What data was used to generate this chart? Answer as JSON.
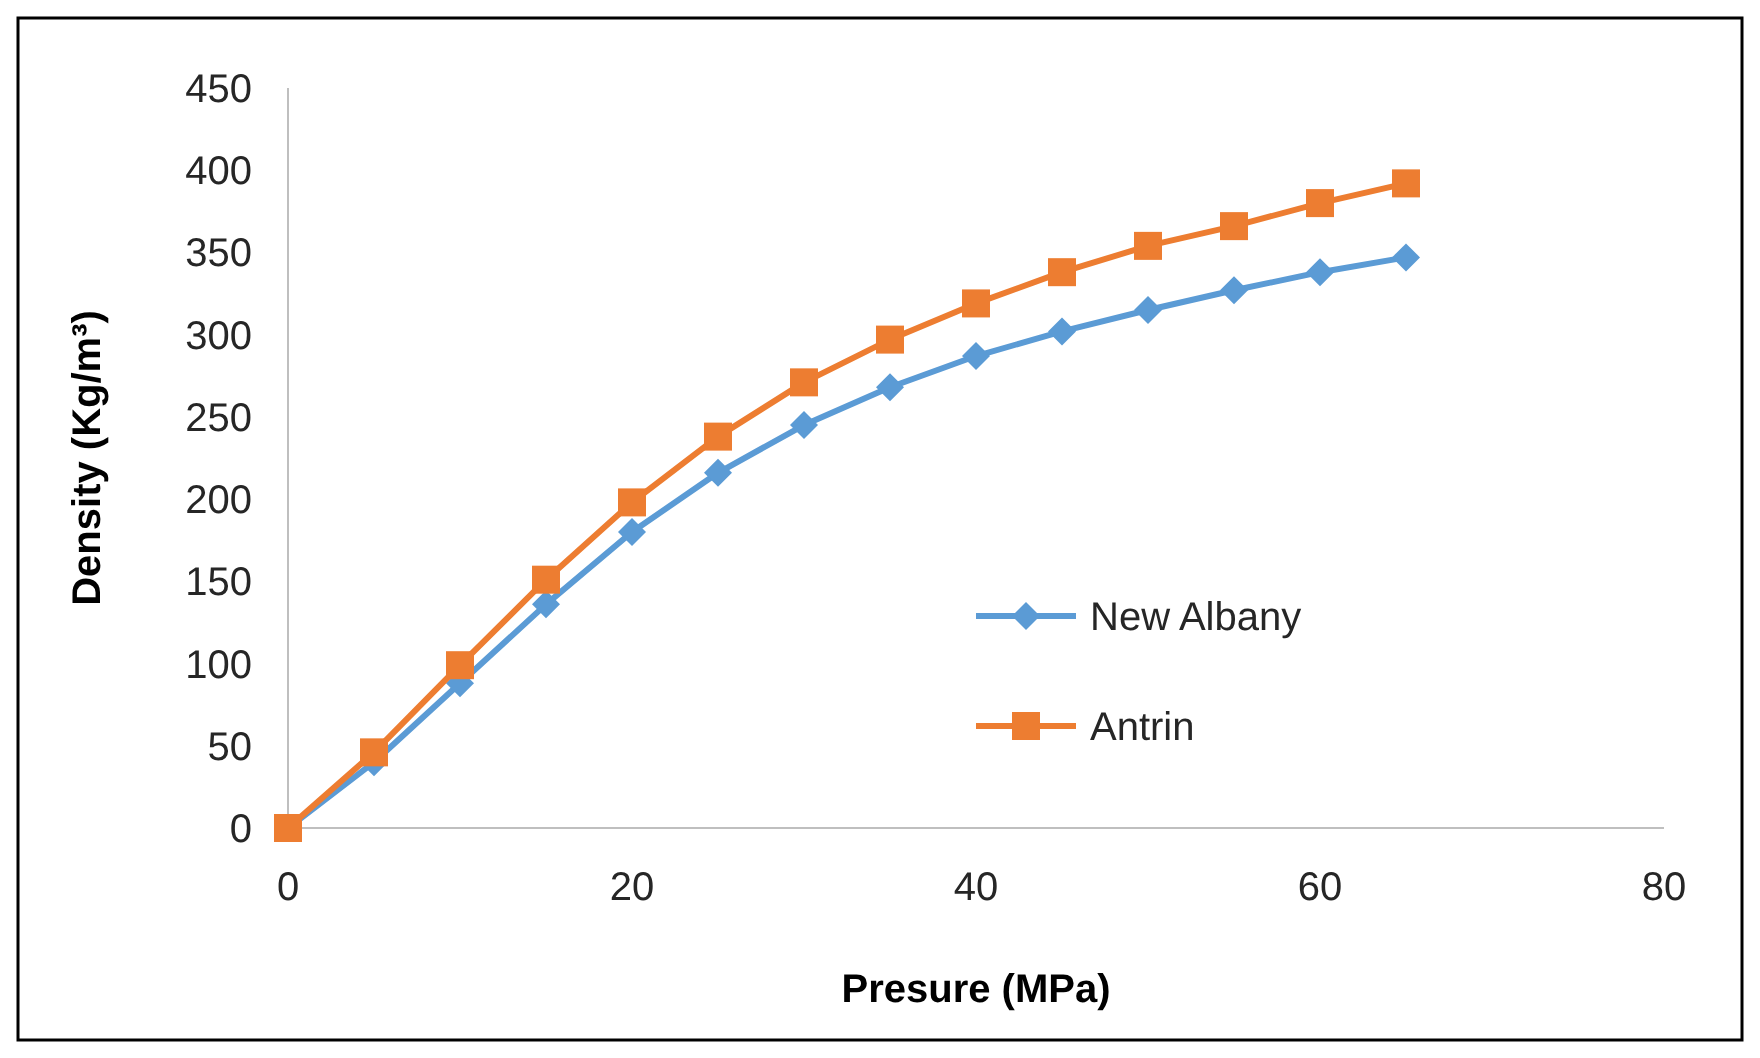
{
  "chart_data": {
    "type": "line",
    "xlabel": "Presure (MPa)",
    "ylabel": "Density (Kg/m³)",
    "x": [
      0,
      5,
      10,
      15,
      20,
      25,
      30,
      35,
      40,
      45,
      50,
      55,
      60,
      65
    ],
    "xlim": [
      0,
      80
    ],
    "xticks": [
      0,
      20,
      40,
      60,
      80
    ],
    "ylim": [
      0,
      450
    ],
    "yticks": [
      0,
      50,
      100,
      150,
      200,
      250,
      300,
      350,
      400,
      450
    ],
    "grid": false,
    "legend": "right",
    "series": [
      {
        "name": "New Albany",
        "color": "#5b9bd5",
        "marker": "diamond",
        "values": [
          0,
          40,
          88,
          136,
          180,
          216,
          245,
          268,
          287,
          302,
          315,
          327,
          338,
          347
        ]
      },
      {
        "name": "Antrin",
        "color": "#ed7d31",
        "marker": "square",
        "values": [
          0,
          46,
          99,
          151,
          198,
          238,
          271,
          297,
          319,
          338,
          354,
          366,
          380,
          392
        ]
      }
    ]
  }
}
